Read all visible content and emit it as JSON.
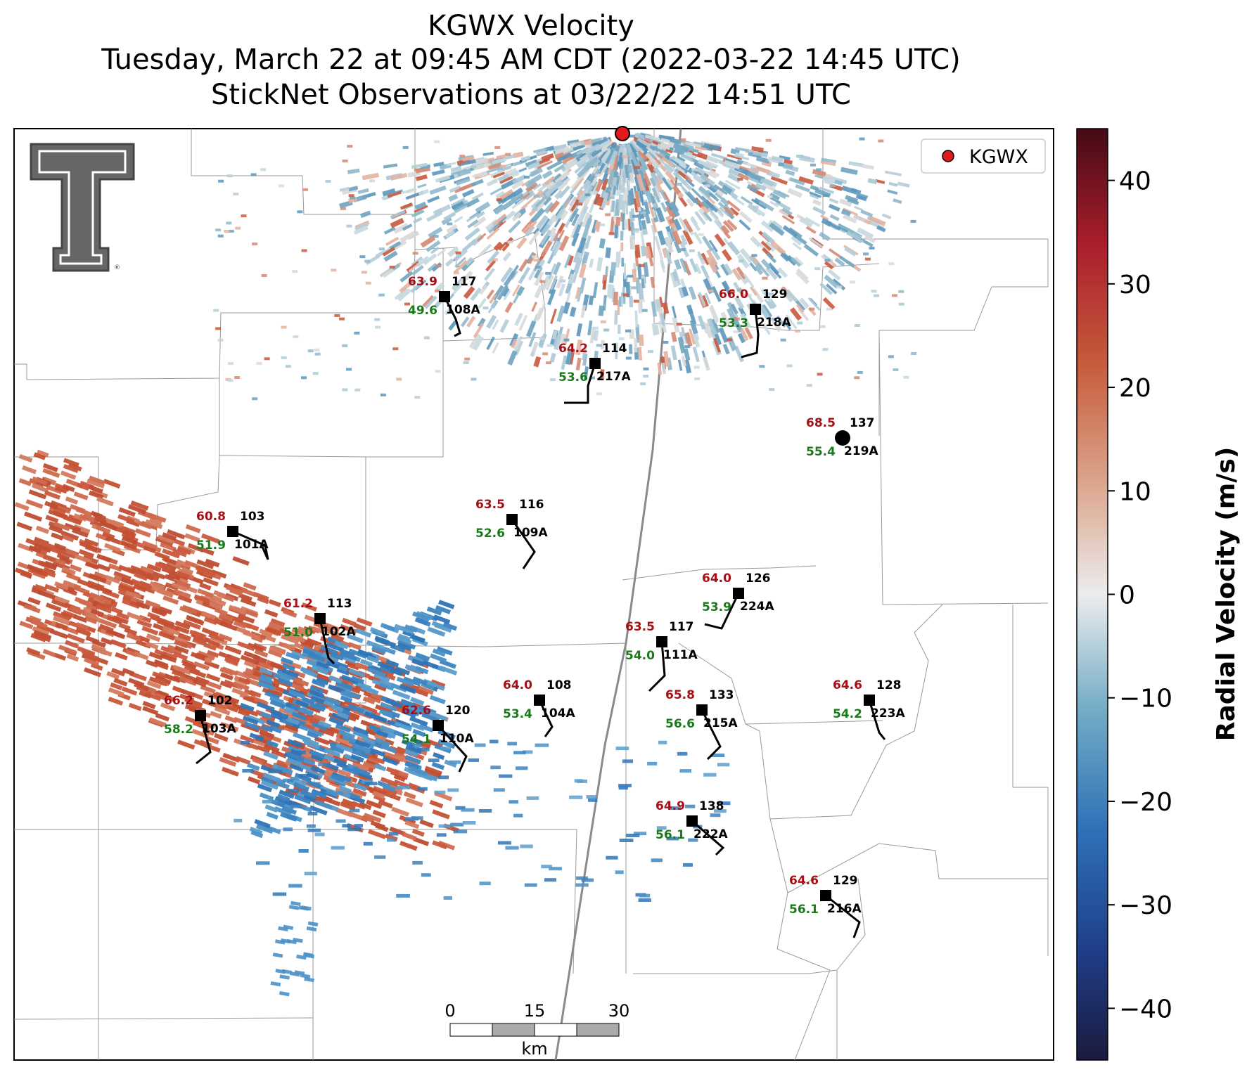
{
  "title": {
    "line1": "KGWX Velocity",
    "line2": "Tuesday, March 22 at 09:45 AM CDT (2022-03-22 14:45 UTC)",
    "line3": "StickNet Observations at 03/22/22 14:51 UTC"
  },
  "legend": {
    "label": "KGWX",
    "marker_color": "#e31a1c"
  },
  "colorbar": {
    "label": "Radial Velocity (m/s)",
    "min": -45,
    "max": 45,
    "ticks": [
      "40",
      "30",
      "20",
      "10",
      "0",
      "−10",
      "−20",
      "−30",
      "−40"
    ],
    "tick_values": [
      40,
      30,
      20,
      10,
      0,
      -10,
      -20,
      -30,
      -40
    ],
    "colors": [
      "#1b1a3e",
      "#1f4fa6",
      "#3d86c4",
      "#8ab8cc",
      "#e8e8e8",
      "#d8a88c",
      "#c25a3a",
      "#a51b2a",
      "#4a0d16"
    ]
  },
  "scale_bar": {
    "ticks": [
      "0",
      "15",
      "30"
    ],
    "unit": "km"
  },
  "logo": "Texas Tech double-T logo",
  "stations": [
    {
      "id": "108A",
      "temp": "63.9",
      "dew": "49.6",
      "gust": "117"
    },
    {
      "id": "217A",
      "temp": "64.2",
      "dew": "53.6",
      "gust": "114"
    },
    {
      "id": "218A",
      "temp": "66.0",
      "dew": "53.3",
      "gust": "129"
    },
    {
      "id": "219A",
      "temp": "68.5",
      "dew": "55.4",
      "gust": "137"
    },
    {
      "id": "101A",
      "temp": "60.8",
      "dew": "51.9",
      "gust": "103"
    },
    {
      "id": "109A",
      "temp": "63.5",
      "dew": "52.6",
      "gust": "116"
    },
    {
      "id": "224A",
      "temp": "64.0",
      "dew": "53.9",
      "gust": "126"
    },
    {
      "id": "102A",
      "temp": "61.2",
      "dew": "51.0",
      "gust": "113"
    },
    {
      "id": "111A",
      "temp": "63.5",
      "dew": "54.0",
      "gust": "117"
    },
    {
      "id": "104A",
      "temp": "64.0",
      "dew": "53.4",
      "gust": "108"
    },
    {
      "id": "103A",
      "temp": "66.2",
      "dew": "58.2",
      "gust": "102"
    },
    {
      "id": "110A",
      "temp": "62.6",
      "dew": "54.1",
      "gust": "120"
    },
    {
      "id": "215A",
      "temp": "65.8",
      "dew": "56.6",
      "gust": "133"
    },
    {
      "id": "223A",
      "temp": "64.6",
      "dew": "54.2",
      "gust": "128"
    },
    {
      "id": "222A",
      "temp": "64.9",
      "dew": "56.1",
      "gust": "138"
    },
    {
      "id": "216A",
      "temp": "64.6",
      "dew": "56.1",
      "gust": "129"
    }
  ]
}
